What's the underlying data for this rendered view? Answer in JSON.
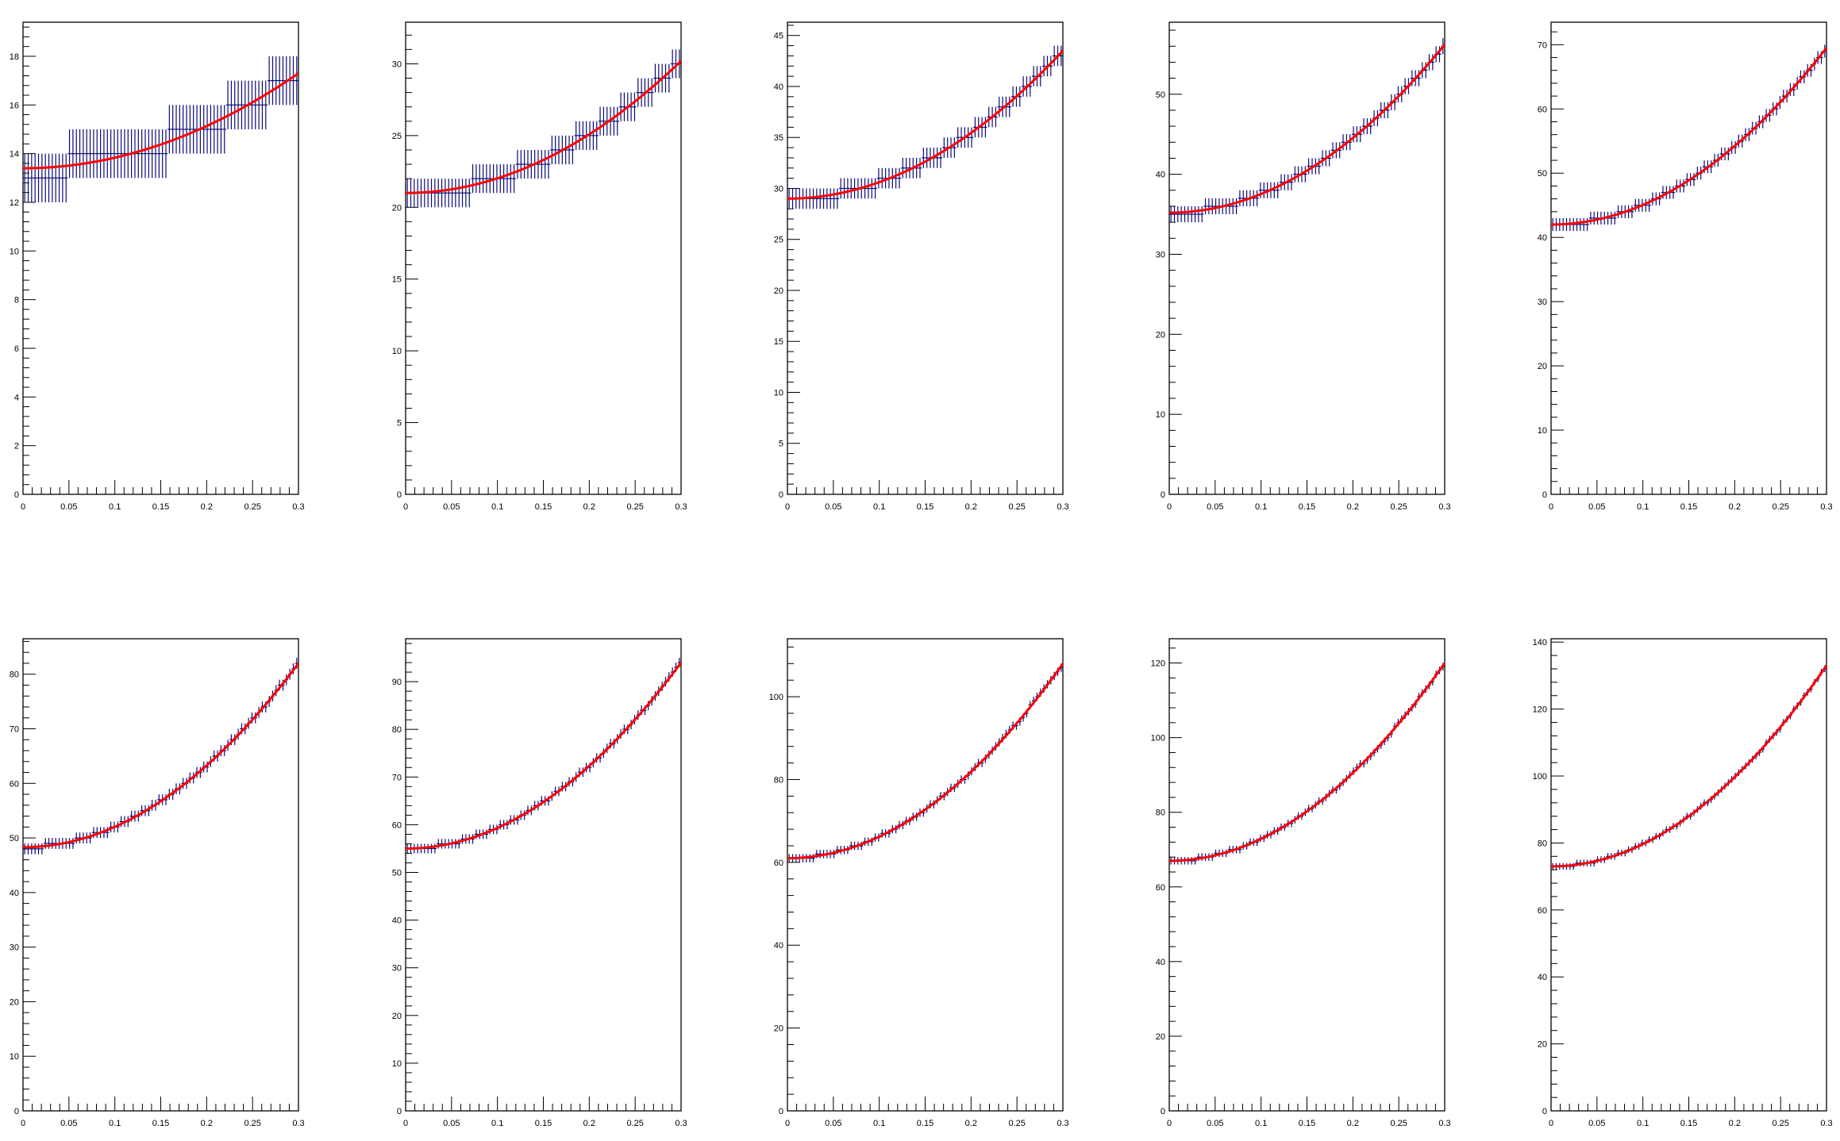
{
  "colors": {
    "points": "#0a0a78",
    "fit": "#ff0000",
    "axis": "#000000",
    "background": "#ffffff"
  },
  "chart_data": [
    {
      "type": "scatter",
      "ylim": [
        0,
        19.4
      ],
      "yticks": [
        "0",
        "2",
        "4",
        "6",
        "8",
        "10",
        "12",
        "14",
        "16",
        "18"
      ],
      "ytick_values": [
        0,
        2,
        4,
        6,
        8,
        10,
        12,
        14,
        16,
        18
      ],
      "xlim": [
        0,
        0.3
      ],
      "xticks": [
        "0",
        "0.05",
        "0.1",
        "0.15",
        "0.2",
        "0.25",
        "0.3"
      ],
      "xtick_values": [
        0,
        0.05,
        0.1,
        0.15,
        0.2,
        0.25,
        0.3
      ],
      "fit": {
        "kind": "quadratic",
        "at_start": 13.4,
        "at_end": 17.3
      },
      "points": {
        "count": 80,
        "min_step": 1,
        "y_error": 1.0
      },
      "grid": false
    },
    {
      "type": "scatter",
      "ylim": [
        0,
        32.9
      ],
      "yticks": [
        "0",
        "5",
        "10",
        "15",
        "20",
        "25",
        "30"
      ],
      "ytick_values": [
        0,
        5,
        10,
        15,
        20,
        25,
        30
      ],
      "xlim": [
        0,
        0.3
      ],
      "xticks": [
        "0",
        "0.05",
        "0.1",
        "0.15",
        "0.2",
        "0.25",
        "0.3"
      ],
      "xtick_values": [
        0,
        0.05,
        0.1,
        0.15,
        0.2,
        0.25,
        0.3
      ],
      "fit": {
        "kind": "quadratic",
        "at_start": 21.0,
        "at_end": 30.2
      },
      "points": {
        "count": 80,
        "min_step": 1,
        "y_error": 1.0
      },
      "grid": false
    },
    {
      "type": "scatter",
      "ylim": [
        0,
        46.3
      ],
      "yticks": [
        "0",
        "5",
        "10",
        "15",
        "20",
        "25",
        "30",
        "35",
        "40",
        "45"
      ],
      "ytick_values": [
        0,
        5,
        10,
        15,
        20,
        25,
        30,
        35,
        40,
        45
      ],
      "xlim": [
        0,
        0.3
      ],
      "xticks": [
        "0",
        "0.05",
        "0.1",
        "0.15",
        "0.2",
        "0.25",
        "0.3"
      ],
      "xtick_values": [
        0,
        0.05,
        0.1,
        0.15,
        0.2,
        0.25,
        0.3
      ],
      "fit": {
        "kind": "quadratic",
        "at_start": 29.0,
        "at_end": 43.5
      },
      "points": {
        "count": 80,
        "min_step": 1,
        "y_error": 1.0
      },
      "grid": false
    },
    {
      "type": "scatter",
      "ylim": [
        0,
        59
      ],
      "yticks": [
        "0",
        "10",
        "20",
        "30",
        "40",
        "50"
      ],
      "ytick_values": [
        0,
        10,
        20,
        30,
        40,
        50
      ],
      "xlim": [
        0,
        0.3
      ],
      "xticks": [
        "0",
        "0.05",
        "0.1",
        "0.15",
        "0.2",
        "0.25",
        "0.3"
      ],
      "xtick_values": [
        0,
        0.05,
        0.1,
        0.15,
        0.2,
        0.25,
        0.3
      ],
      "fit": {
        "kind": "quadratic",
        "at_start": 35.2,
        "at_end": 56.2
      },
      "points": {
        "count": 80,
        "min_step": 1,
        "y_error": 1.0
      },
      "grid": false
    },
    {
      "type": "scatter",
      "ylim": [
        0,
        73.5
      ],
      "yticks": [
        "0",
        "10",
        "20",
        "30",
        "40",
        "50",
        "60",
        "70"
      ],
      "ytick_values": [
        0,
        10,
        20,
        30,
        40,
        50,
        60,
        70
      ],
      "xlim": [
        0,
        0.3
      ],
      "xticks": [
        "0",
        "0.05",
        "0.1",
        "0.15",
        "0.2",
        "0.25",
        "0.3"
      ],
      "xtick_values": [
        0,
        0.05,
        0.1,
        0.15,
        0.2,
        0.25,
        0.3
      ],
      "fit": {
        "kind": "quadratic",
        "at_start": 42.0,
        "at_end": 69.5
      },
      "points": {
        "count": 80,
        "min_step": 1,
        "y_error": 1.0
      },
      "grid": false
    },
    {
      "type": "scatter",
      "ylim": [
        0,
        86.5
      ],
      "yticks": [
        "0",
        "10",
        "20",
        "30",
        "40",
        "50",
        "60",
        "70",
        "80"
      ],
      "ytick_values": [
        0,
        10,
        20,
        30,
        40,
        50,
        60,
        70,
        80
      ],
      "xlim": [
        0,
        0.3
      ],
      "xticks": [
        "0",
        "0.05",
        "0.1",
        "0.15",
        "0.2",
        "0.25",
        "0.3"
      ],
      "xtick_values": [
        0,
        0.05,
        0.1,
        0.15,
        0.2,
        0.25,
        0.3
      ],
      "fit": {
        "kind": "quadratic",
        "at_start": 48.3,
        "at_end": 82.0
      },
      "points": {
        "count": 80,
        "min_step": 1,
        "y_error": 1.0
      },
      "grid": false
    },
    {
      "type": "scatter",
      "ylim": [
        0,
        99
      ],
      "yticks": [
        "0",
        "10",
        "20",
        "30",
        "40",
        "50",
        "60",
        "70",
        "80",
        "90"
      ],
      "ytick_values": [
        0,
        10,
        20,
        30,
        40,
        50,
        60,
        70,
        80,
        90
      ],
      "xlim": [
        0,
        0.3
      ],
      "xticks": [
        "0",
        "0.05",
        "0.1",
        "0.15",
        "0.2",
        "0.25",
        "0.3"
      ],
      "xtick_values": [
        0,
        0.05,
        0.1,
        0.15,
        0.2,
        0.25,
        0.3
      ],
      "fit": {
        "kind": "quadratic",
        "at_start": 55.0,
        "at_end": 94.0
      },
      "points": {
        "count": 80,
        "min_step": 1,
        "y_error": 1.0
      },
      "grid": false
    },
    {
      "type": "scatter",
      "ylim": [
        0,
        114
      ],
      "yticks": [
        "0",
        "20",
        "40",
        "60",
        "80",
        "100"
      ],
      "ytick_values": [
        0,
        20,
        40,
        60,
        80,
        100
      ],
      "xlim": [
        0,
        0.3
      ],
      "xticks": [
        "0",
        "0.05",
        "0.1",
        "0.15",
        "0.2",
        "0.25",
        "0.3"
      ],
      "xtick_values": [
        0,
        0.05,
        0.1,
        0.15,
        0.2,
        0.25,
        0.3
      ],
      "fit": {
        "kind": "quadratic",
        "at_start": 61.0,
        "at_end": 108.0
      },
      "points": {
        "count": 80,
        "min_step": 1,
        "y_error": 1.0
      },
      "grid": false
    },
    {
      "type": "scatter",
      "ylim": [
        0,
        126.5
      ],
      "yticks": [
        "0",
        "20",
        "40",
        "60",
        "80",
        "100",
        "120"
      ],
      "ytick_values": [
        0,
        20,
        40,
        60,
        80,
        100,
        120
      ],
      "xlim": [
        0,
        0.3
      ],
      "xticks": [
        "0",
        "0.05",
        "0.1",
        "0.15",
        "0.2",
        "0.25",
        "0.3"
      ],
      "xtick_values": [
        0,
        0.05,
        0.1,
        0.15,
        0.2,
        0.25,
        0.3
      ],
      "fit": {
        "kind": "quadratic",
        "at_start": 67.0,
        "at_end": 120.0
      },
      "points": {
        "count": 80,
        "min_step": 1,
        "y_error": 1.0
      },
      "grid": false
    },
    {
      "type": "scatter",
      "ylim": [
        0,
        141
      ],
      "yticks": [
        "0",
        "20",
        "40",
        "60",
        "80",
        "100",
        "120",
        "140"
      ],
      "ytick_values": [
        0,
        20,
        40,
        60,
        80,
        100,
        120,
        140
      ],
      "xlim": [
        0,
        0.3
      ],
      "xticks": [
        "0",
        "0.05",
        "0.1",
        "0.15",
        "0.2",
        "0.25",
        "0.3"
      ],
      "xtick_values": [
        0,
        0.05,
        0.1,
        0.15,
        0.2,
        0.25,
        0.3
      ],
      "fit": {
        "kind": "quadratic",
        "at_start": 73.0,
        "at_end": 133.0
      },
      "points": {
        "count": 80,
        "min_step": 1,
        "y_error": 1.0
      },
      "grid": false
    }
  ]
}
